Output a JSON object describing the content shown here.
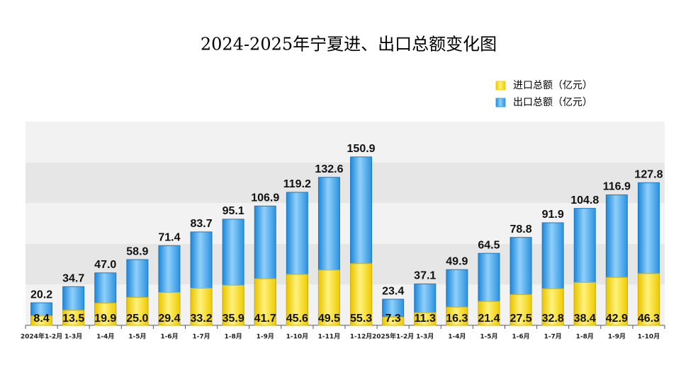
{
  "chart_data": {
    "type": "bar",
    "title": "2024-2025年宁夏进、出口总额变化图",
    "categories": [
      "2024年1-2月",
      "1-3月",
      "1-4月",
      "1-5月",
      "1-6月",
      "1-7月",
      "1-8月",
      "1-9月",
      "1-10月",
      "1-11月",
      "1-12月",
      "2025年1-2月",
      "1-3月",
      "1-4月",
      "1-5月",
      "1-6月",
      "1-7月",
      "1-8月",
      "1-9月",
      "1-10月"
    ],
    "series": [
      {
        "name": "进口总额（亿元）",
        "color": "#f5d400",
        "values": [
          8.4,
          13.5,
          19.9,
          25.0,
          29.4,
          33.2,
          35.9,
          41.7,
          45.6,
          49.5,
          55.3,
          7.3,
          11.3,
          16.3,
          21.4,
          27.5,
          32.8,
          38.4,
          42.9,
          46.3
        ],
        "value_labels": [
          "8.4",
          "13.5",
          "19.9",
          "25.0",
          "29.4",
          "33.2",
          "35.9",
          "41.7",
          "45.6",
          "49.5",
          "55.3",
          "7.3",
          "11.3",
          "16.3",
          "21.4",
          "27.5",
          "32.8",
          "38.4",
          "42.9",
          "46.3"
        ]
      },
      {
        "name": "出口总额（亿元）",
        "color": "#3aa0ea",
        "values": [
          20.2,
          34.7,
          47.0,
          58.9,
          71.4,
          83.7,
          95.1,
          106.9,
          119.2,
          132.6,
          150.9,
          23.4,
          37.1,
          49.9,
          64.5,
          78.8,
          91.9,
          104.8,
          116.9,
          127.8
        ],
        "value_labels": [
          "20.2",
          "34.7",
          "47.0",
          "58.9",
          "71.4",
          "83.7",
          "95.1",
          "106.9",
          "119.2",
          "132.6",
          "150.9",
          "23.4",
          "37.1",
          "49.9",
          "64.5",
          "78.8",
          "91.9",
          "104.8",
          "116.9",
          "127.8"
        ]
      }
    ],
    "ylim": [
      0,
      182.5
    ]
  }
}
